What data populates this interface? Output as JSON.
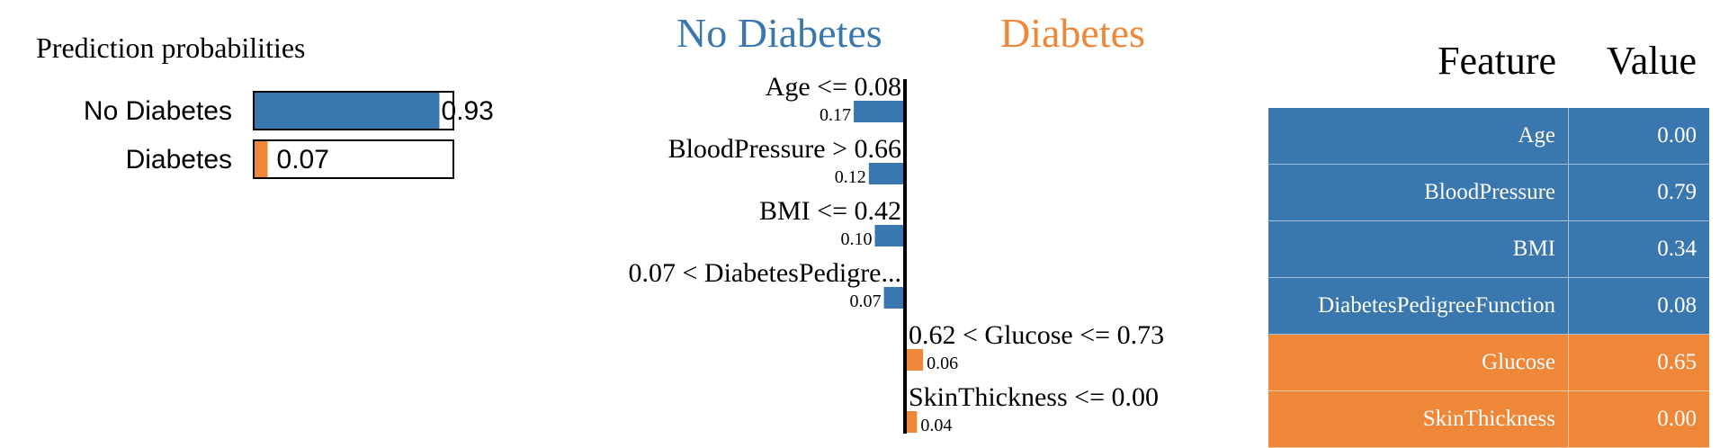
{
  "colors": {
    "neg": "#3A77AF",
    "pos": "#EF8738",
    "axis": "#000000"
  },
  "chart_data": [
    {
      "type": "bar",
      "title": "Prediction probabilities",
      "categories": [
        "No Diabetes",
        "Diabetes"
      ],
      "values": [
        0.93,
        0.07
      ],
      "value_labels": [
        "0.93",
        "0.07"
      ],
      "xlim": [
        0,
        1
      ]
    },
    {
      "type": "bar",
      "orientation": "horizontal",
      "neg_class": "No Diabetes",
      "pos_class": "Diabetes",
      "features": [
        {
          "label": "Age <= 0.08",
          "weight": -0.17,
          "value_label": "0.17"
        },
        {
          "label": "BloodPressure > 0.66",
          "weight": -0.12,
          "value_label": "0.12"
        },
        {
          "label": "BMI <= 0.42",
          "weight": -0.1,
          "value_label": "0.10"
        },
        {
          "label": "0.07 < DiabetesPedigre...",
          "weight": -0.07,
          "value_label": "0.07"
        },
        {
          "label": "0.62 < Glucose <= 0.73",
          "weight": 0.06,
          "value_label": "0.06"
        },
        {
          "label": "SkinThickness <= 0.00",
          "weight": 0.04,
          "value_label": "0.04"
        }
      ]
    },
    {
      "type": "table",
      "headers": [
        "Feature",
        "Value"
      ],
      "rows": [
        {
          "feature": "Age",
          "value": "0.00",
          "class": "neg"
        },
        {
          "feature": "BloodPressure",
          "value": "0.79",
          "class": "neg"
        },
        {
          "feature": "BMI",
          "value": "0.34",
          "class": "neg"
        },
        {
          "feature": "DiabetesPedigreeFunction",
          "value": "0.08",
          "class": "neg"
        },
        {
          "feature": "Glucose",
          "value": "0.65",
          "class": "pos"
        },
        {
          "feature": "SkinThickness",
          "value": "0.00",
          "class": "pos"
        }
      ]
    }
  ]
}
